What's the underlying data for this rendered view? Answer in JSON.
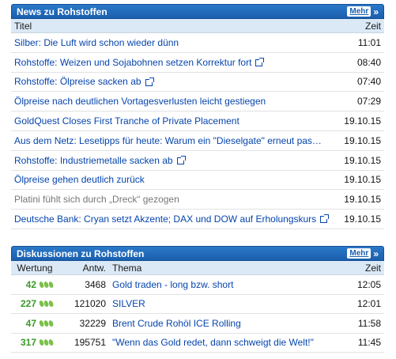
{
  "news": {
    "title": "News zu Rohstoffen",
    "more_label": "Mehr",
    "more_arrows": "»",
    "col_title": "Titel",
    "col_time": "Zeit",
    "rows": [
      {
        "title": "Silber: Die Luft wird schon wieder dünn",
        "time": "11:01",
        "external": false,
        "visited": false
      },
      {
        "title": "Rohstoffe: Weizen und Sojabohnen setzen Korrektur fort",
        "time": "08:40",
        "external": true,
        "visited": false
      },
      {
        "title": "Rohstoffe: Ölpreise sacken ab",
        "time": "07:40",
        "external": true,
        "visited": false
      },
      {
        "title": "Ölpreise nach deutlichen Vortagesverlusten leicht gestiegen",
        "time": "07:29",
        "external": false,
        "visited": false
      },
      {
        "title": "GoldQuest Closes First Tranche of Private Placement",
        "time": "19.10.15",
        "external": false,
        "visited": false
      },
      {
        "title": "Aus dem Netz: Lesetipps für heute: Warum ein \"Dieselgate\" erneut pas…",
        "time": "19.10.15",
        "external": false,
        "visited": false
      },
      {
        "title": "Rohstoffe: Industriemetalle sacken ab",
        "time": "19.10.15",
        "external": true,
        "visited": false
      },
      {
        "title": "Ölpreise gehen deutlich zurück",
        "time": "19.10.15",
        "external": false,
        "visited": false
      },
      {
        "title": "Platini fühlt sich durch „Dreck“ gezogen",
        "time": "19.10.15",
        "external": false,
        "visited": true
      },
      {
        "title": "Deutsche Bank: Cryan setzt Akzente; DAX und DOW auf Erholungskurs",
        "time": "19.10.15",
        "external": true,
        "visited": false
      }
    ]
  },
  "discussions": {
    "title": "Diskussionen zu Rohstoffen",
    "more_label": "Mehr",
    "more_arrows": "»",
    "col_rating": "Wertung",
    "col_replies": "Antw.",
    "col_topic": "Thema",
    "col_time": "Zeit",
    "rows": [
      {
        "score": "42",
        "replies": "3468",
        "topic": "Gold traden - long bzw. short",
        "time": "12:05"
      },
      {
        "score": "227",
        "replies": "121020",
        "topic": "SILVER",
        "time": "12:01"
      },
      {
        "score": "47",
        "replies": "32229",
        "topic": "Brent Crude Rohöl ICE Rolling",
        "time": "11:58"
      },
      {
        "score": "317",
        "replies": "195751",
        "topic": "\"Wenn das Gold redet, dann schweigt die Welt!\"",
        "time": "11:45"
      }
    ]
  }
}
